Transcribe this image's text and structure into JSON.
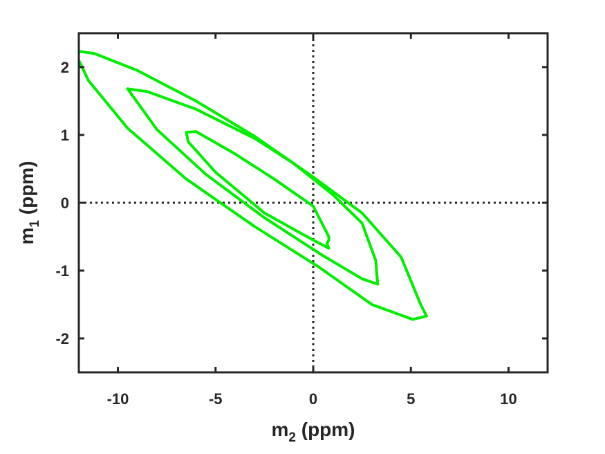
{
  "chart_data": {
    "type": "line",
    "title": "",
    "xlabel": {
      "base": "m",
      "sub": "2",
      "rest": " (ppm)"
    },
    "ylabel": {
      "base": "m",
      "sub": "1",
      "rest": " (ppm)"
    },
    "xlim": [
      -12,
      12
    ],
    "ylim": [
      -2.5,
      2.5
    ],
    "xticks": [
      -10,
      -5,
      0,
      5,
      10
    ],
    "xtick_labels": [
      "-10",
      "-5",
      "0",
      "5",
      "10"
    ],
    "yticks": [
      -2,
      -1,
      0,
      1,
      2
    ],
    "ytick_labels": [
      "-2",
      "-1",
      "0",
      "1",
      "2"
    ],
    "grid": false,
    "reference_lines": {
      "x": 0,
      "y": 0,
      "style": "dotted",
      "color": "#262626"
    },
    "line_color": "#00ee00",
    "series": [
      {
        "x": [
          -11.9,
          -11.2,
          -9.0,
          -6.0,
          -3.0,
          0.0,
          2.5,
          4.5,
          5.5,
          5.8,
          5.1,
          3.0,
          0.3,
          -3.0,
          -6.5,
          -9.5,
          -11.5,
          -12.0
        ],
        "y": [
          2.23,
          2.2,
          1.95,
          1.5,
          0.98,
          0.38,
          -0.15,
          -0.8,
          -1.5,
          -1.67,
          -1.72,
          -1.5,
          -0.95,
          -0.35,
          0.35,
          1.1,
          1.8,
          2.1
        ]
      },
      {
        "x": [
          -9.5,
          -8.5,
          -6.0,
          -3.0,
          -1.0,
          1.0,
          2.5,
          3.2,
          3.3,
          2.5,
          0.5,
          -2.5,
          -5.5,
          -8.0,
          -9.5
        ],
        "y": [
          1.68,
          1.64,
          1.38,
          0.95,
          0.58,
          0.12,
          -0.3,
          -0.85,
          -1.2,
          -1.12,
          -0.78,
          -0.22,
          0.42,
          1.08,
          1.68
        ]
      },
      {
        "x": [
          -6.5,
          -6.0,
          -4.0,
          -2.0,
          0.0,
          0.8,
          0.8,
          0.7,
          0.8,
          0.0,
          -2.5,
          -5.0,
          -6.4,
          -6.5
        ],
        "y": [
          1.04,
          1.05,
          0.72,
          0.35,
          -0.05,
          -0.5,
          -0.55,
          -0.6,
          -0.67,
          -0.55,
          -0.15,
          0.45,
          0.9,
          1.04
        ]
      }
    ]
  }
}
